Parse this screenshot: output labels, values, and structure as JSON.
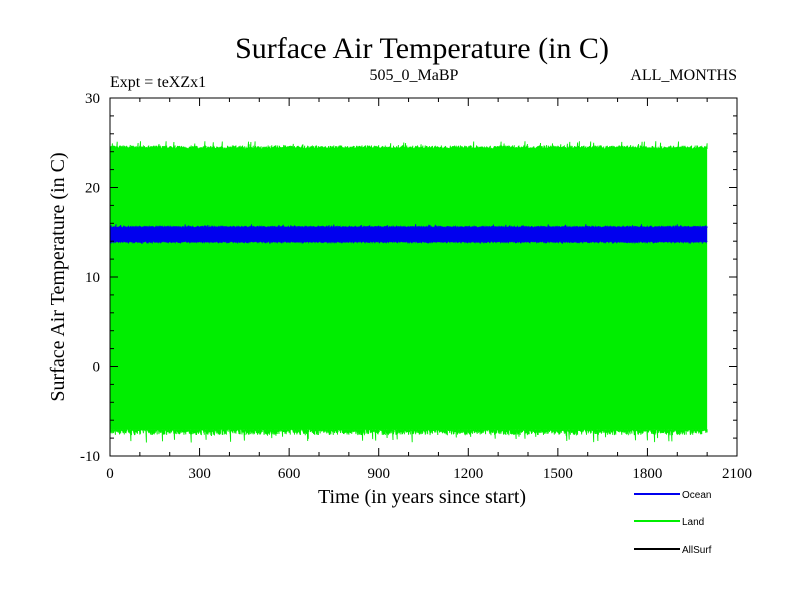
{
  "chart_data": {
    "type": "line",
    "title": "Surface Air Temperature (in C)",
    "subtitle_left": "Expt = teXZx1",
    "subtitle_center": "505_0_MaBP",
    "subtitle_right": "ALL_MONTHS",
    "xlabel": "Time (in years since start)",
    "ylabel": "Surface Air Temperature (in C)",
    "xlim": [
      0,
      2100
    ],
    "ylim": [
      -10,
      30
    ],
    "x_ticks": [
      0,
      300,
      600,
      900,
      1200,
      1500,
      1800,
      2100
    ],
    "y_ticks": [
      -10,
      0,
      10,
      20,
      30
    ],
    "x_range_data": [
      0,
      2000
    ],
    "series": [
      {
        "name": "Land",
        "color": "#00ee00",
        "min_approx": -7,
        "max_approx": 24.3,
        "extreme_min": -8.5,
        "extreme_max": 25.2
      },
      {
        "name": "Ocean",
        "color": "#0000ee",
        "min_approx": 14,
        "max_approx": 15.5,
        "extreme_min": 13.7,
        "extreme_max": 15.9
      },
      {
        "name": "AllSurf",
        "color": "#000000"
      }
    ],
    "legend": [
      "Ocean",
      "Land",
      "AllSurf"
    ]
  }
}
